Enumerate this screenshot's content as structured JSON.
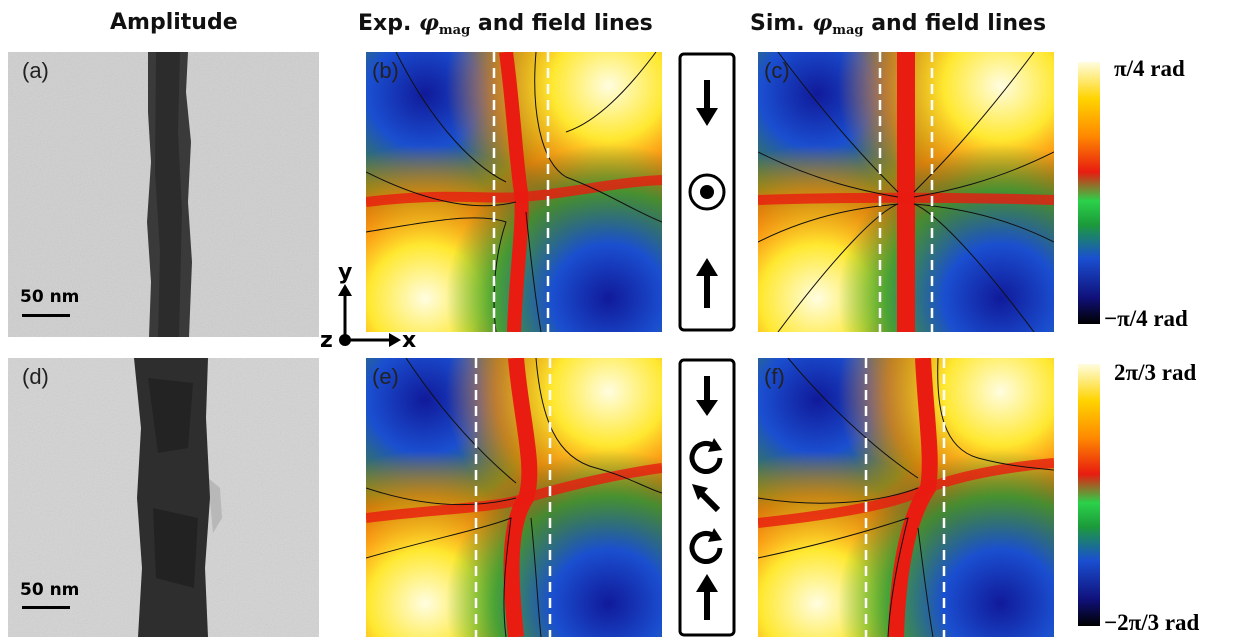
{
  "headers": {
    "amplitude": "Amplitude",
    "exp_prefix": "Exp.",
    "sim_prefix": "Sim.",
    "phi": "φ",
    "phi_sub": "mag",
    "suffix": "and field lines"
  },
  "panels": {
    "a": "(a)",
    "b": "(b)",
    "c": "(c)",
    "d": "(d)",
    "e": "(e)",
    "f": "(f)"
  },
  "scale_bars": {
    "top": "50 nm",
    "bottom": "50 nm"
  },
  "axes": {
    "y": "y",
    "z": "z",
    "x": "x"
  },
  "colorbars": {
    "top_max": "π/4 rad",
    "top_min": "−π/4 rad",
    "bottom_max": "2π/3 rad",
    "bottom_min": "−2π/3 rad"
  },
  "icons": {
    "top_column": [
      "arrow-down-icon",
      "out-of-plane-dot-icon",
      "arrow-up-icon"
    ],
    "bottom_column": [
      "arrow-down-icon",
      "vortex-icon",
      "arrow-diagonal-icon",
      "vortex-icon",
      "arrow-up-icon"
    ]
  },
  "colors": {
    "colormap": [
      "#000000",
      "#10107a",
      "#1a4fd0",
      "#1c9b3a",
      "#2bd14a",
      "#e81c10",
      "#ff8a00",
      "#ffd400",
      "#fffde0"
    ]
  }
}
